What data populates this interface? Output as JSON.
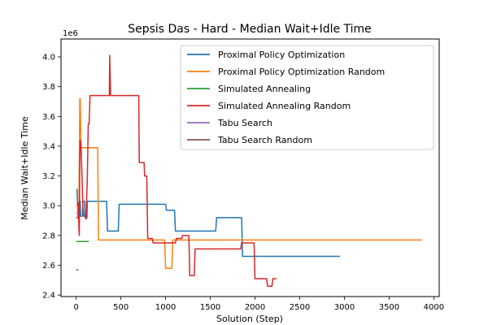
{
  "chart_data": {
    "type": "line",
    "title": "Sepsis Das - Hard - Median Wait+Idle Time",
    "xlabel": "Solution (Step)",
    "ylabel": "Median Wait+Idle Time",
    "y_offset_label": "1e6",
    "xlim": [
      -170,
      4060
    ],
    "ylim": [
      2.39,
      4.12
    ],
    "y_scale_factor": 1000000,
    "x_ticks": [
      0,
      500,
      1000,
      1500,
      2000,
      2500,
      3000,
      3500,
      4000
    ],
    "x_tick_labels": [
      "0",
      "500",
      "1000",
      "1500",
      "2000",
      "2500",
      "3000",
      "3500",
      "4000"
    ],
    "y_ticks": [
      2.4,
      2.6,
      2.8,
      3.0,
      3.2,
      3.4,
      3.6,
      3.8,
      4.0
    ],
    "y_tick_labels": [
      "2.4",
      "2.6",
      "2.8",
      "3.0",
      "3.2",
      "3.4",
      "3.6",
      "3.8",
      "4.0"
    ],
    "grid": false,
    "legend_position": "top-right",
    "series": [
      {
        "name": "Proximal Policy Optimization",
        "color": "#1f77b4",
        "points": [
          [
            0,
            3.11
          ],
          [
            10,
            3.11
          ],
          [
            15,
            3.0
          ],
          [
            30,
            3.0
          ],
          [
            35,
            3.03
          ],
          [
            45,
            3.03
          ],
          [
            50,
            2.93
          ],
          [
            70,
            2.93
          ],
          [
            75,
            3.03
          ],
          [
            95,
            3.03
          ],
          [
            100,
            2.92
          ],
          [
            120,
            2.92
          ],
          [
            125,
            3.03
          ],
          [
            160,
            3.03
          ],
          [
            170,
            3.03
          ],
          [
            340,
            3.03
          ],
          [
            350,
            2.83
          ],
          [
            470,
            2.83
          ],
          [
            480,
            3.01
          ],
          [
            1000,
            3.01
          ],
          [
            1010,
            2.97
          ],
          [
            1100,
            2.97
          ],
          [
            1110,
            2.83
          ],
          [
            1560,
            2.83
          ],
          [
            1570,
            2.92
          ],
          [
            1850,
            2.92
          ],
          [
            1860,
            2.66
          ],
          [
            2950,
            2.66
          ]
        ]
      },
      {
        "name": "Proximal Policy Optimization Random",
        "color": "#ff7f0e",
        "points": [
          [
            0,
            3.0
          ],
          [
            15,
            3.0
          ],
          [
            20,
            2.95
          ],
          [
            30,
            2.95
          ],
          [
            35,
            3.3
          ],
          [
            40,
            3.72
          ],
          [
            45,
            3.72
          ],
          [
            55,
            3.39
          ],
          [
            240,
            3.39
          ],
          [
            250,
            2.77
          ],
          [
            980,
            2.77
          ],
          [
            990,
            2.77
          ],
          [
            1000,
            2.58
          ],
          [
            1070,
            2.58
          ],
          [
            1080,
            2.77
          ],
          [
            3870,
            2.77
          ]
        ]
      },
      {
        "name": "Simulated Annealing",
        "color": "#2ca02c",
        "points": [
          [
            0,
            2.76
          ],
          [
            140,
            2.76
          ]
        ]
      },
      {
        "name": "Simulated Annealing Random",
        "color": "#d62728",
        "points": [
          [
            0,
            2.92
          ],
          [
            20,
            2.92
          ],
          [
            25,
            3.02
          ],
          [
            30,
            2.85
          ],
          [
            35,
            2.8
          ],
          [
            40,
            3.3
          ],
          [
            45,
            3.44
          ],
          [
            55,
            3.4
          ],
          [
            65,
            3.2
          ],
          [
            75,
            2.99
          ],
          [
            85,
            2.93
          ],
          [
            100,
            2.93
          ],
          [
            110,
            2.91
          ],
          [
            125,
            3.2
          ],
          [
            135,
            3.55
          ],
          [
            145,
            3.55
          ],
          [
            155,
            3.74
          ],
          [
            370,
            3.74
          ],
          [
            375,
            4.01
          ],
          [
            385,
            3.74
          ],
          [
            700,
            3.74
          ],
          [
            705,
            3.29
          ],
          [
            760,
            3.29
          ],
          [
            765,
            3.2
          ],
          [
            790,
            3.2
          ],
          [
            800,
            2.78
          ],
          [
            850,
            2.78
          ],
          [
            860,
            2.75
          ],
          [
            1110,
            2.75
          ],
          [
            1120,
            2.78
          ],
          [
            1180,
            2.78
          ],
          [
            1190,
            2.8
          ],
          [
            1260,
            2.8
          ],
          [
            1270,
            2.53
          ],
          [
            1320,
            2.53
          ],
          [
            1330,
            2.71
          ],
          [
            1840,
            2.71
          ],
          [
            1850,
            2.75
          ],
          [
            1990,
            2.75
          ],
          [
            2000,
            2.51
          ],
          [
            2130,
            2.51
          ],
          [
            2140,
            2.46
          ],
          [
            2190,
            2.46
          ],
          [
            2200,
            2.51
          ],
          [
            2240,
            2.51
          ]
        ]
      },
      {
        "name": "Tabu Search",
        "color": "#9467bd",
        "points": [
          [
            0,
            2.95
          ],
          [
            30,
            2.95
          ]
        ]
      },
      {
        "name": "Tabu Search Random",
        "color": "#8c564b",
        "points": [
          [
            0,
            2.57
          ],
          [
            25,
            2.57
          ]
        ]
      }
    ]
  }
}
